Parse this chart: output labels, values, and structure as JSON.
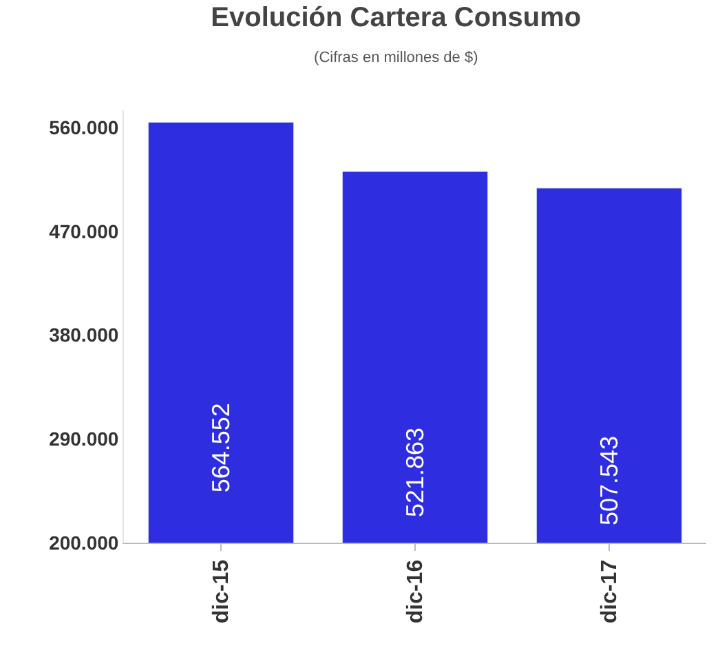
{
  "chart_data": {
    "type": "bar",
    "title": "Evolución Cartera Consumo",
    "subtitle": "(Cifras en millones de $)",
    "categories": [
      "dic-15",
      "dic-16",
      "dic-17"
    ],
    "values": [
      564552,
      521863,
      507543
    ],
    "value_labels": [
      "564.552",
      "521.863",
      "507.543"
    ],
    "color": "#2e2ee0",
    "ylim": [
      200000,
      575000
    ],
    "yticks": [
      {
        "value": 200000,
        "label": "200.000"
      },
      {
        "value": 290000,
        "label": "290.000"
      },
      {
        "value": 380000,
        "label": "380.000"
      },
      {
        "value": 470000,
        "label": "470.000"
      },
      {
        "value": 560000,
        "label": "560.000"
      }
    ],
    "legend": false
  }
}
